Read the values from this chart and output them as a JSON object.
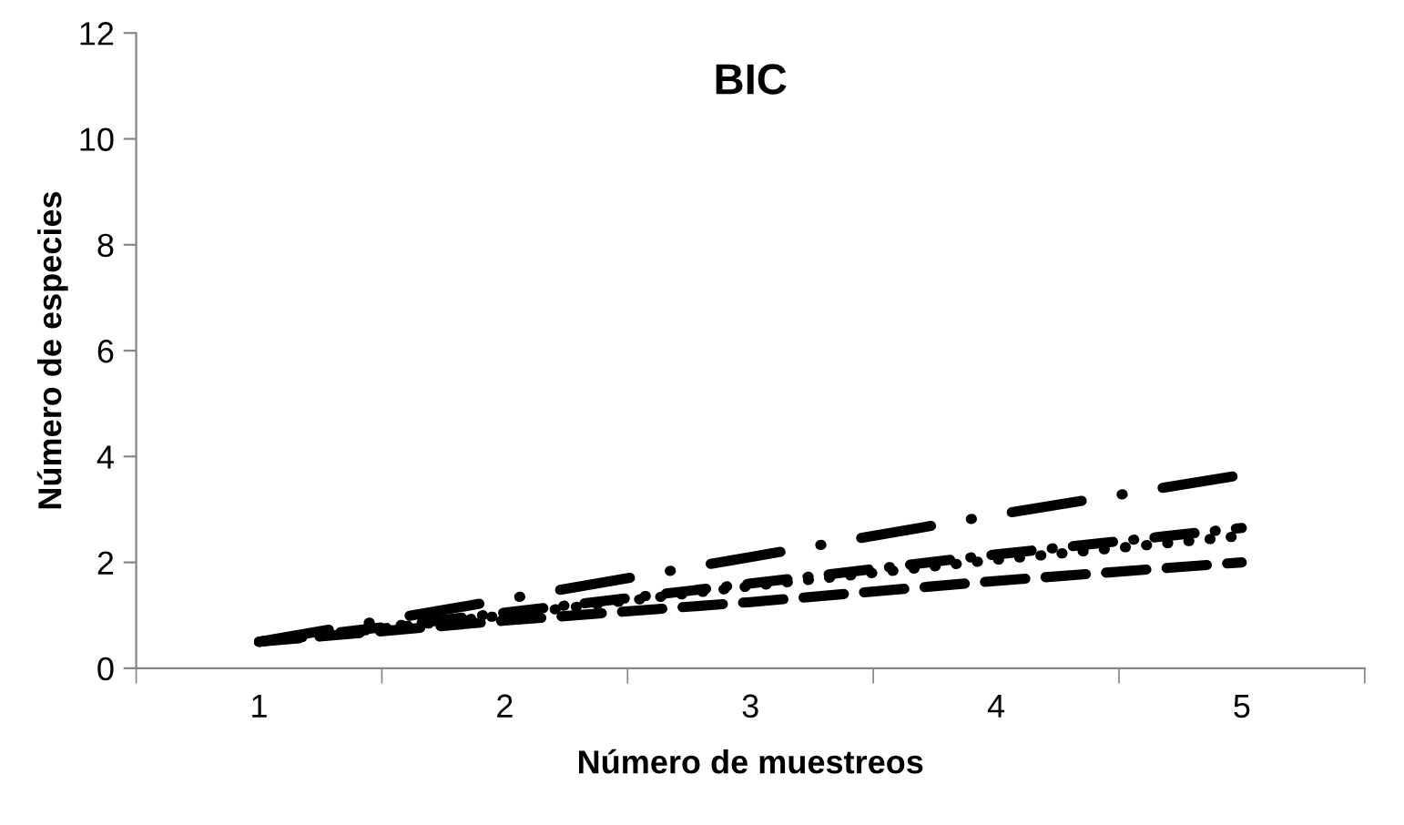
{
  "chart_data": {
    "type": "line",
    "title": "BIC",
    "xlabel": "Número de muestreos",
    "ylabel": "Número de especies",
    "categories": [
      "1",
      "2",
      "3",
      "4",
      "5"
    ],
    "series": [
      {
        "color": "#000000",
        "line_style": "longdashdot",
        "values": [
          0.5,
          1.3,
          2.1,
          2.9,
          3.65
        ]
      },
      {
        "color": "#000000",
        "line_style": "dashdot",
        "values": [
          0.5,
          1.05,
          1.6,
          2.15,
          2.65
        ]
      },
      {
        "color": "#000000",
        "line_style": "dotted",
        "values": [
          0.5,
          1.0,
          1.55,
          2.05,
          2.5
        ]
      },
      {
        "color": "#000000",
        "line_style": "dashed",
        "values": [
          0.5,
          0.9,
          1.25,
          1.65,
          2.0
        ]
      }
    ],
    "ylim": [
      0,
      12
    ],
    "yticks": [
      0,
      2,
      4,
      6,
      8,
      10,
      12
    ],
    "grid": false,
    "legend": false,
    "marker": "none"
  }
}
